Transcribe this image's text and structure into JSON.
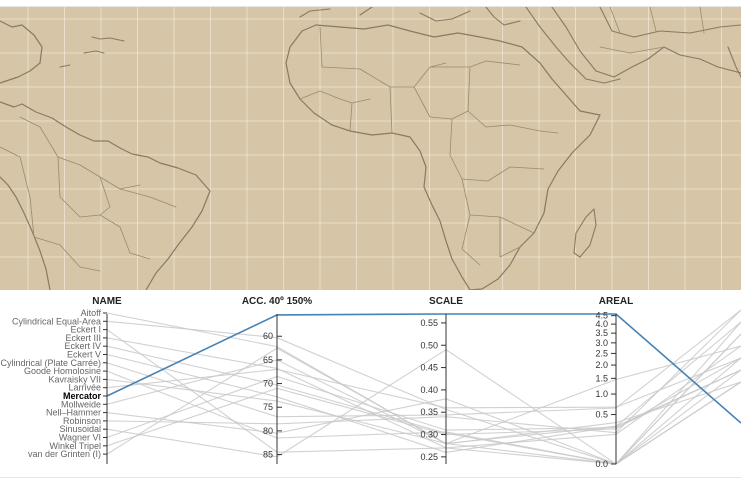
{
  "colors": {
    "map_background": "#d6c5a6",
    "graticule": "#efe5d4",
    "coastline": "#8a7a62",
    "background_line": "#c9c9c9",
    "highlight_line": "#4682b4",
    "axis": "#333333"
  },
  "chart_data": {
    "type": "parallel-coordinates",
    "axes": [
      {
        "key": "name",
        "label": "NAME",
        "kind": "categorical"
      },
      {
        "key": "acc",
        "label": "ACC. 40º 150%",
        "ticks": [
          60,
          65,
          70,
          75,
          80,
          85
        ],
        "domain": [
          55.3,
          87
        ],
        "inverted": true
      },
      {
        "key": "scale",
        "label": "SCALE",
        "ticks": [
          "0.55",
          "0.50",
          "0.45",
          "0.40",
          "0.35",
          "0.30",
          "0.25"
        ],
        "domain": [
          0.234,
          0.57
        ]
      },
      {
        "key": "areal",
        "label": "AREAL",
        "ticks": [
          "4.5",
          "4.0",
          "3.5",
          "3.0",
          "2.5",
          "2.0",
          "1.5",
          "1.0",
          "0.5",
          "0.0"
        ],
        "scale": "sqrt",
        "domain": [
          0,
          4.6
        ]
      }
    ],
    "projections": [
      {
        "name": "Aitoff",
        "acc": 62.2,
        "scale": 0.279,
        "areal": 0.35
      },
      {
        "name": "Cylindrical Equal-Area",
        "acc": 60.3,
        "scale": 0.356,
        "areal": 0.0
      },
      {
        "name": "Eckert I",
        "acc": 84.5,
        "scale": 0.27,
        "areal": 0.0
      },
      {
        "name": "Eckert III",
        "acc": 66.8,
        "scale": 0.27,
        "areal": 0.18
      },
      {
        "name": "Eckert IV",
        "acc": 70.3,
        "scale": 0.303,
        "areal": 0.0
      },
      {
        "name": "Eckert V",
        "acc": 72.8,
        "scale": 0.26,
        "areal": 0.29
      },
      {
        "name": "Equidistant Cylindrical (Plate Carrée)",
        "acc": 77.0,
        "scale": 0.344,
        "areal": 0.64
      },
      {
        "name": "Goode Homolosine",
        "acc": 81.5,
        "scale": 0.306,
        "areal": 0.0
      },
      {
        "name": "Kavraisky VII",
        "acc": 73.7,
        "scale": 0.28,
        "areal": 0.29
      },
      {
        "name": "Larrivée",
        "acc": 67.0,
        "scale": 0.36,
        "areal": 0.66
      },
      {
        "name": "Mercator",
        "acc": 55.5,
        "scale": 0.57,
        "areal": 4.6
      },
      {
        "name": "Mollweide",
        "acc": 65.0,
        "scale": 0.28,
        "areal": 0.0
      },
      {
        "name": "Nell–Hammer",
        "acc": 80.5,
        "scale": 0.38,
        "areal": 0.0
      },
      {
        "name": "Robinson",
        "acc": 78.5,
        "scale": 0.34,
        "areal": 0.2
      },
      {
        "name": "Sinusoidal",
        "acc": 85.5,
        "scale": 0.49,
        "areal": 0.0
      },
      {
        "name": "Wagner VI",
        "acc": 68.5,
        "scale": 0.31,
        "areal": 0.27
      },
      {
        "name": "Winkel Tripel",
        "acc": 71.0,
        "scale": 0.3,
        "areal": 0.25
      },
      {
        "name": "van der Grinten (I)",
        "acc": 62.5,
        "scale": 0.28,
        "areal": 1.46
      }
    ],
    "highlighted": "Mercator"
  }
}
